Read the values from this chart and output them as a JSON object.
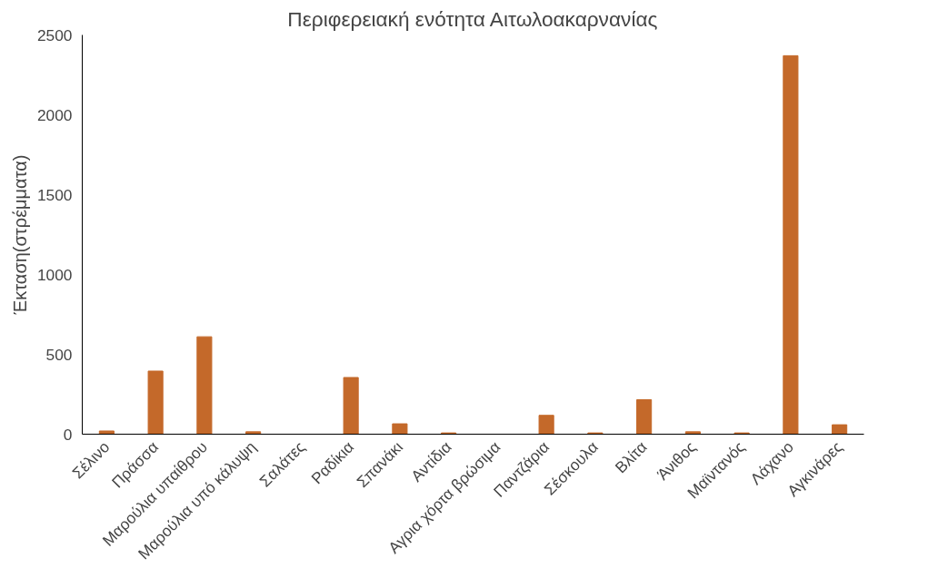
{
  "chart_data": {
    "type": "bar",
    "title": "Περιφερειακή ενότητα Αιτωλοακαρνανίας",
    "ylabel": "Έκταση(στρέμματα)",
    "categories": [
      "Σέλινο",
      "Πράσσα",
      "Μαρούλια υπαίθρου",
      "Μαρούλια υπό κάλυψη",
      "Σαλάτες",
      "Ραδίκια",
      "Σπανάκι",
      "Αντίδια",
      "Αγρια χόρτα βρώσιμα",
      "Παντζάρια",
      "Σέσκουλα",
      "Βλίτα",
      "Άνιθος",
      "Μαϊντανός",
      "Λάχανο",
      "Αγκινάρες"
    ],
    "values": [
      20,
      395,
      610,
      15,
      0,
      355,
      65,
      8,
      0,
      118,
      8,
      216,
      15,
      8,
      2370,
      59
    ],
    "color": "#c4692a",
    "ylim": [
      0,
      2500
    ],
    "yticks": [
      0,
      500,
      1000,
      1500,
      2000,
      2500
    ],
    "grid": false
  }
}
